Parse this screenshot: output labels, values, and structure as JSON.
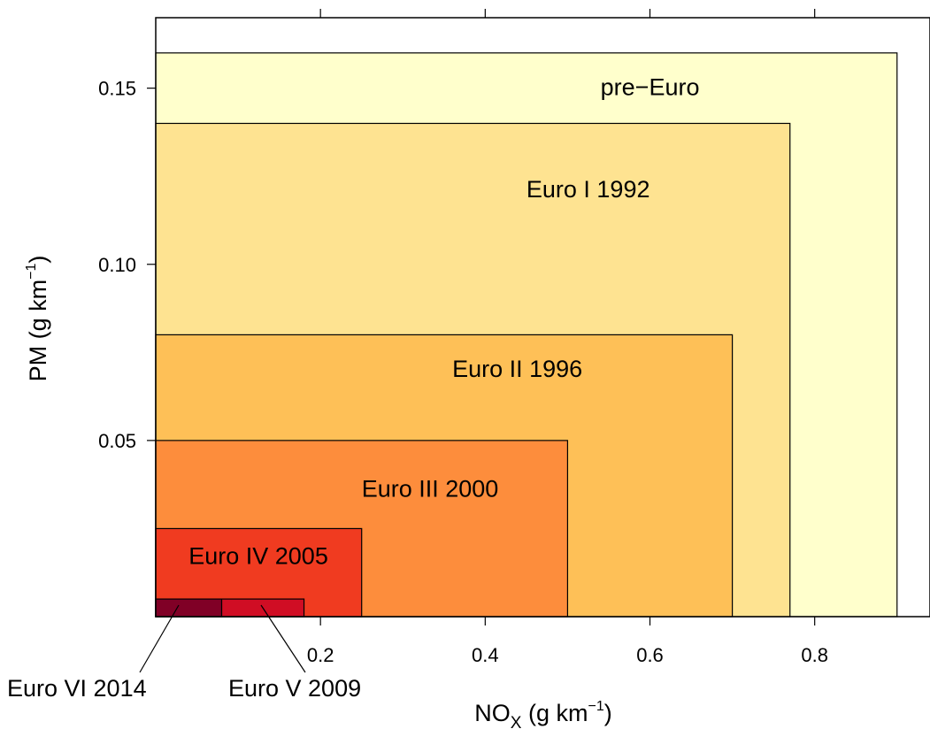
{
  "chart_data": {
    "type": "area",
    "x_axis": {
      "label_main": "NO",
      "label_sub": "X",
      "label_unit": " (g km",
      "label_exp": "−1",
      "label_close": ")",
      "range": [
        0.0,
        0.94
      ],
      "ticks": [
        0.2,
        0.4,
        0.6,
        0.8
      ],
      "tick_labels": [
        "0.2",
        "0.4",
        "0.6",
        "0.8"
      ]
    },
    "y_axis": {
      "label_main": "PM (g km",
      "label_exp": "−1",
      "label_close": ")",
      "range": [
        0.0,
        0.17
      ],
      "ticks": [
        0.05,
        0.1,
        0.15
      ],
      "tick_labels": [
        "0.05",
        "0.10",
        "0.15"
      ]
    },
    "top_axis_ticks": [
      0.2,
      0.4,
      0.6,
      0.8
    ],
    "grid": false,
    "series": [
      {
        "name": "pre−Euro",
        "nox": 0.9,
        "pm": 0.16,
        "color": "#FFFFCC",
        "label": "pre−Euro"
      },
      {
        "name": "Euro I 1992",
        "nox": 0.77,
        "pm": 0.14,
        "color": "#FEE391",
        "label": "Euro I 1992"
      },
      {
        "name": "Euro II 1996",
        "nox": 0.7,
        "pm": 0.08,
        "color": "#FEC057",
        "label": "Euro II 1996"
      },
      {
        "name": "Euro III 2000",
        "nox": 0.5,
        "pm": 0.05,
        "color": "#FD8D3C",
        "label": "Euro III 2000"
      },
      {
        "name": "Euro IV 2005",
        "nox": 0.25,
        "pm": 0.025,
        "color": "#F03B20",
        "label": "Euro IV 2005"
      },
      {
        "name": "Euro V 2009",
        "nox": 0.18,
        "pm": 0.005,
        "color": "#D00D24",
        "label": "Euro V 2009"
      },
      {
        "name": "Euro VI 2014",
        "nox": 0.08,
        "pm": 0.005,
        "color": "#800026",
        "label": "Euro VI 2014"
      }
    ]
  }
}
